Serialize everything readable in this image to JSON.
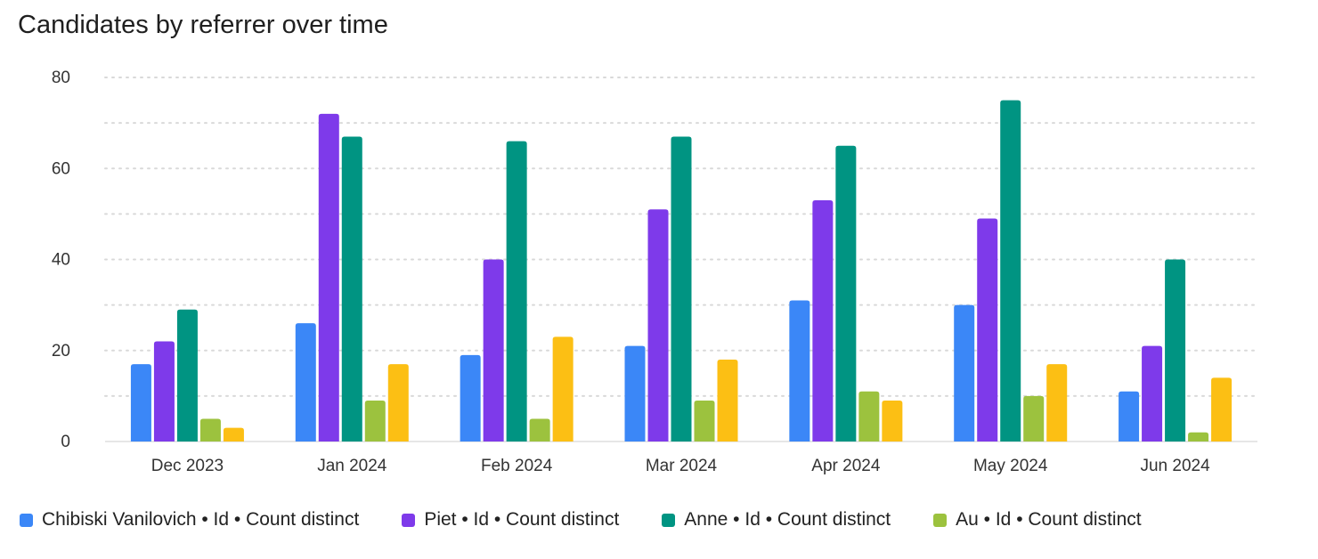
{
  "chart_data": {
    "type": "bar",
    "title": "Candidates by referrer over time",
    "xlabel": "",
    "ylabel": "",
    "ylim": [
      0,
      80
    ],
    "yticks": [
      0,
      20,
      40,
      60,
      80
    ],
    "grid": true,
    "legend_position": "bottom",
    "categories": [
      "Dec 2023",
      "Jan 2024",
      "Feb 2024",
      "Mar 2024",
      "Apr 2024",
      "May 2024",
      "Jun 2024"
    ],
    "series": [
      {
        "name": "Chibiski Vanilovich • Id • Count distinct",
        "color": "#3b87f7",
        "values": [
          17,
          26,
          19,
          21,
          31,
          30,
          11
        ]
      },
      {
        "name": "Piet • Id • Count distinct",
        "color": "#7e3aea",
        "values": [
          22,
          72,
          40,
          51,
          53,
          49,
          21
        ]
      },
      {
        "name": "Anne • Id • Count distinct",
        "color": "#009482",
        "values": [
          29,
          67,
          66,
          67,
          65,
          75,
          40
        ]
      },
      {
        "name": "Au • Id • Count distinct",
        "color": "#9cc23e",
        "values": [
          5,
          9,
          5,
          9,
          11,
          10,
          2
        ]
      },
      {
        "name": "",
        "color": "#fcbf14",
        "values": [
          3,
          17,
          23,
          18,
          9,
          17,
          14
        ]
      }
    ]
  }
}
